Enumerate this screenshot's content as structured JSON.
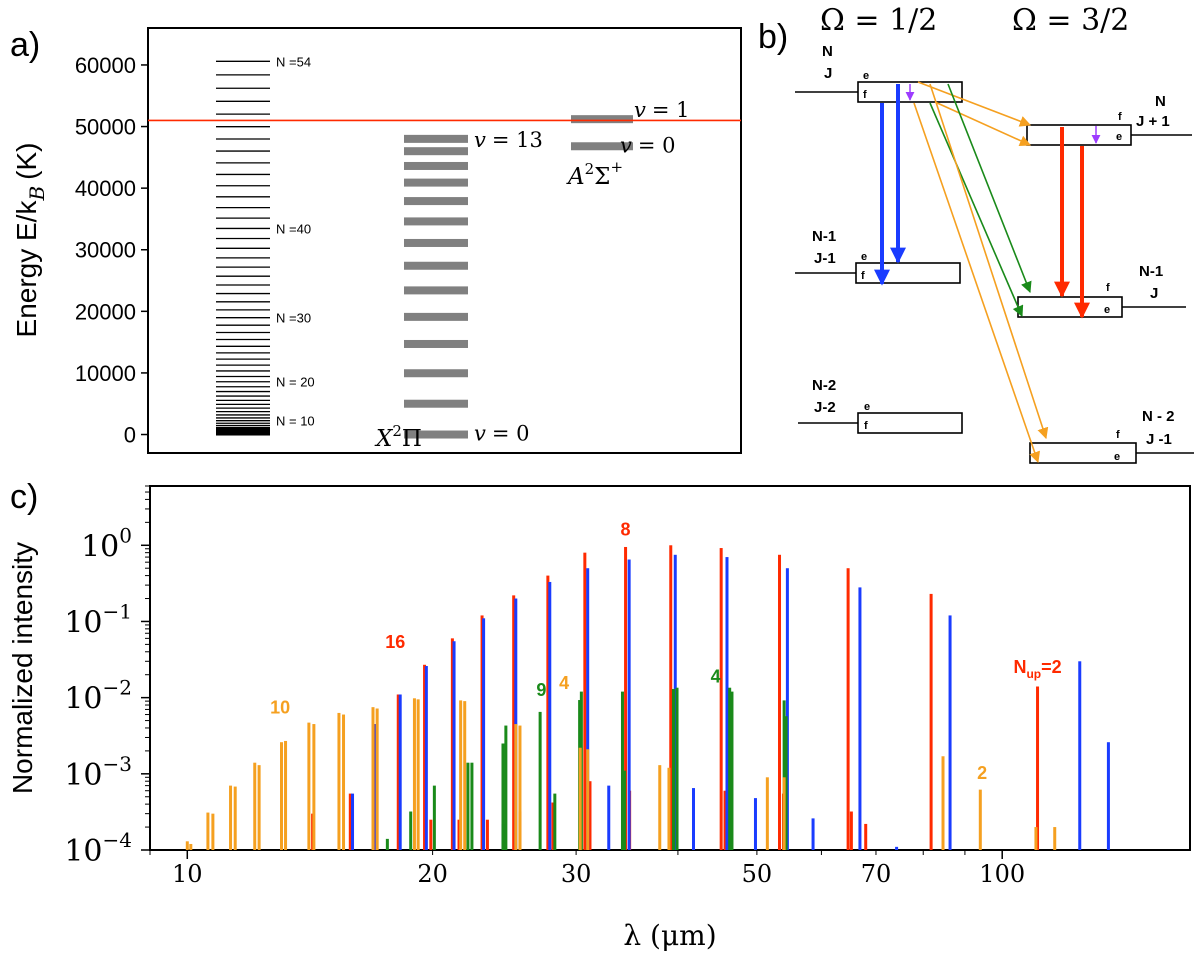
{
  "chart_data": [
    {
      "id": "a",
      "type": "energy-level-diagram",
      "panel_label": "a)",
      "ylabel": "Energy E/k",
      "ylabel_sub": "B",
      "ylabel_unit": "(K)",
      "ylim": [
        -3000,
        66000
      ],
      "yticks": [
        0,
        10000,
        20000,
        30000,
        40000,
        50000,
        60000
      ],
      "dissociation_line": 51000,
      "rotational_levels_N": {
        "from": 1,
        "to": 54,
        "scale": 20.4
      },
      "rotational_labels": [
        {
          "N": 10,
          "text": "N = 10"
        },
        {
          "N": 20,
          "text": "N = 20"
        },
        {
          "N": 30,
          "text": "N =30"
        },
        {
          "N": 40,
          "text": "N =40"
        },
        {
          "N": 54,
          "text": "N =54"
        }
      ],
      "X_state": {
        "name": "X",
        "sup": "2",
        "sym": "Π",
        "levels": [
          0,
          5000,
          9950,
          14700,
          19100,
          23400,
          27400,
          31100,
          34600,
          37900,
          40900,
          43600,
          46000,
          48000
        ],
        "top_label": {
          "v": "v",
          "eq": "= 13"
        },
        "bottom_label": {
          "v": "v",
          "eq": "= 0"
        }
      },
      "A_state": {
        "name": "A",
        "sup": "2",
        "sym": "Σ",
        "sup2": "+",
        "levels": [
          46800,
          51200
        ],
        "top_label": {
          "v": "v",
          "eq": "= 1"
        },
        "bottom_label": {
          "v": "v",
          "eq": "= 0"
        }
      }
    },
    {
      "id": "b",
      "type": "transition-scheme",
      "panel_label": "b)",
      "headers": {
        "left": "Ω = 1/2",
        "right": "Ω = 3/2"
      },
      "left_levels": [
        {
          "N": "N",
          "J": "J"
        },
        {
          "N": "N-1",
          "J": "J-1"
        },
        {
          "N": "N-2",
          "J": "J-2"
        }
      ],
      "right_levels": [
        {
          "N": "N",
          "J": "J + 1"
        },
        {
          "N": "N-1",
          "J": "J"
        },
        {
          "N": "N - 2",
          "J": "J -1"
        }
      ],
      "parity": {
        "e": "e",
        "f": "f"
      },
      "colors": {
        "blue": "#1a3cff",
        "red": "#ff2a00",
        "green": "#1a8a1a",
        "orange": "#f5a020",
        "purple": "#9d3cff"
      }
    },
    {
      "id": "c",
      "type": "bar",
      "panel_label": "c)",
      "xscale": "log",
      "yscale": "log",
      "xlabel": "λ (μm)",
      "ylabel": "Normalized intensity",
      "xlim": [
        9,
        170
      ],
      "ylim": [
        0.0001,
        6
      ],
      "xticks": [
        10,
        20,
        30,
        50,
        70,
        100
      ],
      "yticks": [
        {
          "base": "10",
          "exp": "0",
          "value": 1
        },
        {
          "base": "10",
          "exp": "−1",
          "value": 0.1
        },
        {
          "base": "10",
          "exp": "−2",
          "value": 0.01
        },
        {
          "base": "10",
          "exp": "−3",
          "value": 0.001
        },
        {
          "base": "10",
          "exp": "−4",
          "value": 0.0001
        }
      ],
      "series": [
        {
          "name": "red",
          "color": "#ff2a00",
          "x": [
            15.85,
            16.95,
            18.15,
            19.55,
            21.15,
            23.0,
            25.15,
            27.7,
            30.75,
            34.5,
            39.2,
            45.2,
            53.3,
            64.7,
            81.8,
            110.5
          ],
          "y": [
            0.00055,
            0.0045,
            0.011,
            0.027,
            0.06,
            0.12,
            0.22,
            0.4,
            0.8,
            0.95,
            1.0,
            0.92,
            0.75,
            0.5,
            0.23,
            0.014
          ]
        },
        {
          "name": "red-small",
          "color": "#ff2a00",
          "x": [
            14.25,
            19.9,
            21.55,
            23.35,
            25.6,
            28.1,
            31.2,
            34.9,
            39.6,
            45.7,
            53.9,
            65.3,
            68.0
          ],
          "y": [
            0.0003,
            0.00025,
            0.00025,
            0.00025,
            0.00032,
            0.00042,
            0.0008,
            0.0006,
            0.0008,
            0.0006,
            0.00055,
            0.00032,
            0.00022
          ]
        },
        {
          "name": "blue",
          "color": "#1a3cff",
          "x": [
            15.95,
            17.05,
            18.25,
            19.65,
            21.25,
            23.1,
            25.3,
            27.85,
            31.0,
            34.85,
            39.7,
            45.95,
            54.5,
            66.9,
            86.3,
            124.5
          ],
          "y": [
            0.00055,
            0.0045,
            0.011,
            0.026,
            0.055,
            0.11,
            0.2,
            0.33,
            0.5,
            0.65,
            0.75,
            0.7,
            0.5,
            0.28,
            0.12,
            0.03
          ]
        },
        {
          "name": "blue-small",
          "color": "#1a3cff",
          "x": [
            24.4,
            32.9,
            41.8,
            49.8,
            58.6,
            74.2,
            135.0
          ],
          "y": [
            0.00022,
            0.0007,
            0.00065,
            0.00048,
            0.00026,
            0.00011,
            0.0026
          ]
        },
        {
          "name": "green",
          "color": "#1a8a1a",
          "x": [
            17.6,
            18.8,
            20.1,
            22.1,
            24.4,
            27.1,
            30.3,
            34.2,
            39.5,
            46.3,
            54.0
          ],
          "y": [
            0.00014,
            0.00032,
            0.0007,
            0.0014,
            0.0025,
            0.0065,
            0.0093,
            0.012,
            0.013,
            0.0135,
            0.0092
          ]
        },
        {
          "name": "green-b",
          "color": "#1a8a1a",
          "x": [
            22.35,
            24.6,
            28.25,
            30.45,
            34.4,
            39.9,
            46.6,
            54.3
          ],
          "y": [
            0.0014,
            0.0043,
            0.00055,
            0.012,
            0.0011,
            0.0135,
            0.012,
            0.0057
          ]
        },
        {
          "name": "orange",
          "color": "#f5a020",
          "x": [
            10.0,
            10.6,
            11.3,
            12.1,
            13.05,
            14.1,
            15.35,
            16.9,
            19.0,
            21.65,
            25.3,
            30.35,
            38.0,
            51.5,
            84.6,
            110.0
          ],
          "y": [
            0.00013,
            0.00031,
            0.0007,
            0.0014,
            0.0026,
            0.0047,
            0.0063,
            0.0075,
            0.0098,
            0.0092,
            0.0045,
            0.0022,
            0.0013,
            0.0009,
            0.0017,
            0.0002
          ]
        },
        {
          "name": "orange-b",
          "color": "#f5a020",
          "x": [
            10.1,
            10.75,
            11.45,
            12.25,
            13.2,
            14.3,
            15.55,
            17.1,
            19.2,
            21.9,
            25.6,
            31.0,
            39.0,
            54.0,
            94.0,
            116.0
          ],
          "y": [
            0.00012,
            0.0003,
            0.00068,
            0.0013,
            0.0027,
            0.0045,
            0.006,
            0.0072,
            0.0095,
            0.009,
            0.0043,
            0.0021,
            0.0012,
            0.0009,
            0.00062,
            0.0002
          ]
        }
      ],
      "annotations": [
        {
          "text": "16",
          "x": 18.0,
          "y": 0.045,
          "color": "#ff2a00"
        },
        {
          "text": "8",
          "x": 34.5,
          "y": 1.35,
          "color": "#ff2a00"
        },
        {
          "text": "10",
          "x": 13.0,
          "y": 0.0062,
          "color": "#f5a020"
        },
        {
          "text": "4",
          "x": 29.0,
          "y": 0.013,
          "color": "#f5a020"
        },
        {
          "text": "9",
          "x": 27.2,
          "y": 0.0105,
          "color": "#1a8a1a"
        },
        {
          "text": "4",
          "x": 44.5,
          "y": 0.0158,
          "color": "#1a8a1a"
        },
        {
          "text": "2",
          "x": 94.5,
          "y": 0.00085,
          "color": "#f5a020"
        }
      ],
      "nup_label": {
        "text": "N",
        "sub": "up",
        "rest": "=2",
        "color": "#ff2a00",
        "x": 110.5,
        "y": 0.021
      }
    }
  ]
}
